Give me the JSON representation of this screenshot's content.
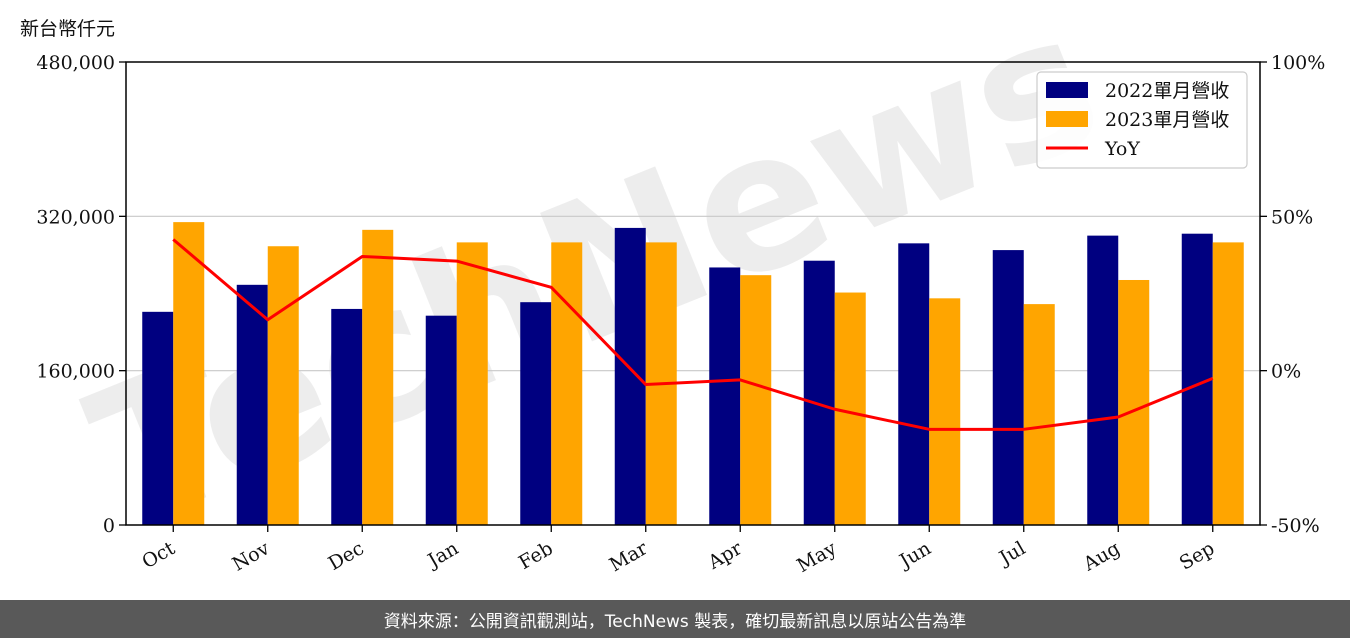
{
  "unit_label": "新台幣仟元",
  "footer_text": "資料來源：公開資訊觀測站，TechNews 製表，確切最新訊息以原站公告為準",
  "watermark_text": "TechNews",
  "colors": {
    "series_2022": "#000080",
    "series_2023": "#ffa500",
    "yoy": "#ff0000",
    "footer_bg": "#595959"
  },
  "chart_data": {
    "type": "bar",
    "categories": [
      "Oct",
      "Nov",
      "Dec",
      "Jan",
      "Feb",
      "Mar",
      "Apr",
      "May",
      "Jun",
      "Jul",
      "Aug",
      "Sep"
    ],
    "series": [
      {
        "name": "2022單月營收",
        "values": [
          221000,
          249000,
          224000,
          217000,
          231000,
          308000,
          267000,
          274000,
          292000,
          285000,
          300000,
          302000
        ]
      },
      {
        "name": "2023單月營收",
        "values": [
          314000,
          289000,
          306000,
          293000,
          293000,
          293000,
          259000,
          241000,
          235000,
          229000,
          254000,
          293000
        ]
      }
    ],
    "line_series": {
      "name": "YoY",
      "values": [
        42.5,
        16.5,
        37.0,
        35.5,
        27.0,
        -4.5,
        -3.0,
        -12.5,
        -19.0,
        -19.0,
        -15.0,
        -2.5
      ]
    },
    "ylim": [
      0,
      480000
    ],
    "y_ticks": [
      "0",
      "160,000",
      "320,000",
      "480,000"
    ],
    "y2lim": [
      -50,
      100
    ],
    "y2_ticks": [
      "-50%",
      "0%",
      "50%",
      "100%"
    ],
    "grid": "horizontal",
    "legend_position": "top-right"
  }
}
